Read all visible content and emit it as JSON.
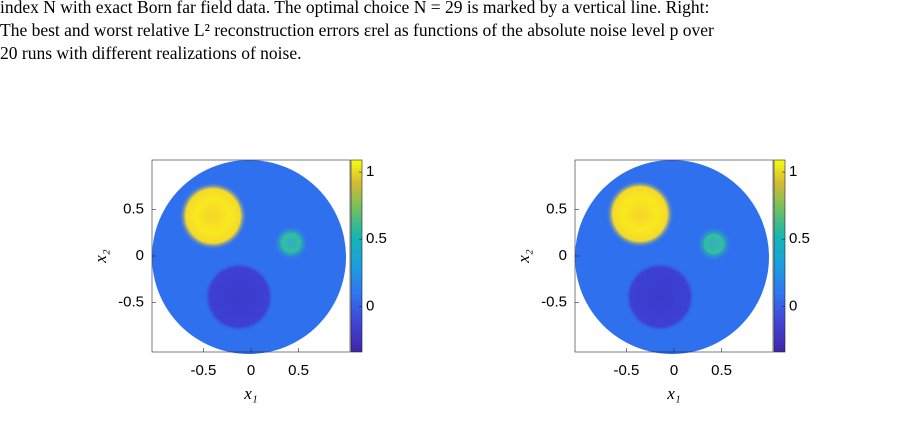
{
  "caption": {
    "lines": [
      "index N with exact Born far field data. The optimal choice N = 29 is marked by a vertical line. Right:",
      "The best and worst relative L² reconstruction errors εrel as functions of the absolute noise level p over",
      "20 runs with different realizations of noise."
    ]
  },
  "figures": [
    {
      "xlabel": "x₁",
      "ylabel": "x₂",
      "xlim": [
        -1.04,
        1.04
      ],
      "ylim": [
        -1.03,
        1.03
      ],
      "xticks": [
        -0.5,
        0,
        0.5
      ],
      "yticks": [
        -0.5,
        0,
        0.5
      ],
      "clim": [
        -0.34,
        1.09
      ],
      "cticks": [
        0,
        0.5,
        1
      ]
    },
    {
      "xlabel": "x₁",
      "ylabel": "x₂",
      "xlim": [
        -1.04,
        1.04
      ],
      "ylim": [
        -1.03,
        1.03
      ],
      "xticks": [
        -0.5,
        0,
        0.5
      ],
      "yticks": [
        -0.5,
        0,
        0.5
      ],
      "clim": [
        -0.34,
        1.09
      ],
      "cticks": [
        0,
        0.5,
        1
      ]
    }
  ]
}
